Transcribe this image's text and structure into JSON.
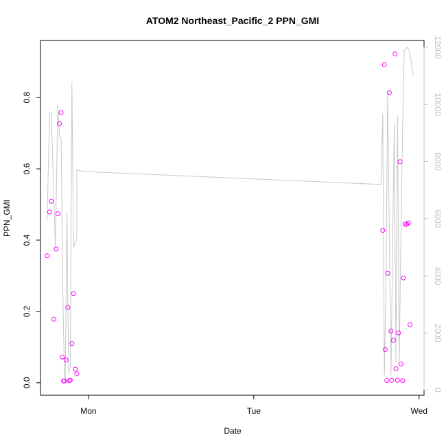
{
  "chart_data": {
    "type": "scatter",
    "title": "ATOM2 Northeast_Pacific_2 PPN_GMI",
    "xlabel": "Date",
    "ylabel": "PPN_GMI",
    "x_ticks": [
      {
        "pos": 0,
        "label": "Mon"
      },
      {
        "pos": 1,
        "label": "Tue"
      },
      {
        "pos": 2,
        "label": "Wed"
      }
    ],
    "xlim": [
      -0.29,
      2.03
    ],
    "y_ticks": [
      "0.0",
      "0.2",
      "0.4",
      "0.6",
      "0.8"
    ],
    "y_tick_values": [
      0,
      0.2,
      0.4,
      0.6,
      0.8
    ],
    "ylim": [
      -0.035,
      0.96
    ],
    "y2_ticks": [
      "0",
      "2000",
      "4000",
      "6000",
      "8000",
      "10000",
      "12000"
    ],
    "y2_tick_values": [
      0,
      2000,
      4000,
      6000,
      8000,
      10000,
      12000
    ],
    "y2lim": [
      -180,
      12240
    ],
    "colors": {
      "points": "#ff00ff",
      "line": "#c8c8c8",
      "right_axis": "#c0c0c0",
      "axis": "#000000"
    },
    "series": [
      {
        "kind": "points",
        "axis": "left",
        "x": [
          -0.25,
          -0.235,
          -0.225,
          -0.21,
          -0.195,
          -0.185,
          -0.175,
          -0.165,
          -0.158,
          -0.15,
          -0.145,
          -0.135,
          -0.125,
          -0.115,
          -0.11,
          -0.1,
          -0.09,
          -0.08,
          -0.07,
          1.78,
          1.79,
          1.795,
          1.805,
          1.81,
          1.82,
          1.83,
          1.835,
          1.845,
          1.855,
          1.86,
          1.87,
          1.875,
          1.885,
          1.89,
          1.9,
          1.905,
          1.915,
          1.925,
          1.935,
          1.945
        ],
        "y": [
          0.356,
          0.479,
          0.509,
          0.178,
          0.375,
          0.474,
          0.727,
          0.758,
          0.072,
          0.005,
          0.005,
          0.064,
          0.211,
          0.006,
          0.007,
          0.11,
          0.25,
          0.038,
          0.025,
          0.427,
          0.892,
          0.093,
          0.006,
          0.307,
          0.814,
          0.145,
          0.007,
          0.119,
          0.922,
          0.039,
          0.007,
          0.14,
          0.62,
          0.053,
          0.006,
          0.294,
          0.446,
          0.444,
          0.448,
          0.163
        ]
      },
      {
        "kind": "line",
        "axis": "right",
        "x": [
          -0.25,
          -0.235,
          -0.225,
          -0.2,
          -0.185,
          -0.175,
          -0.165,
          -0.155,
          -0.145,
          -0.14,
          -0.13,
          -0.12,
          -0.11,
          -0.1,
          -0.09,
          -0.07,
          -0.07,
          -0.02,
          1.77,
          1.78,
          1.79,
          1.8,
          1.81,
          1.83,
          1.84,
          1.85,
          1.86,
          1.87,
          1.88,
          1.89,
          1.9,
          1.91,
          1.93,
          1.94,
          1.955,
          1.965
        ],
        "y": [
          5900,
          9700,
          9700,
          5000,
          10000,
          8900,
          8800,
          3500,
          500,
          300,
          6200,
          600,
          800,
          10800,
          5000,
          5300,
          7700,
          7650,
          7200,
          9700,
          500,
          4000,
          10400,
          500,
          5000,
          9300,
          1000,
          9600,
          1000,
          5500,
          9000,
          11900,
          12000,
          11900,
          11400,
          11000
        ]
      }
    ]
  }
}
